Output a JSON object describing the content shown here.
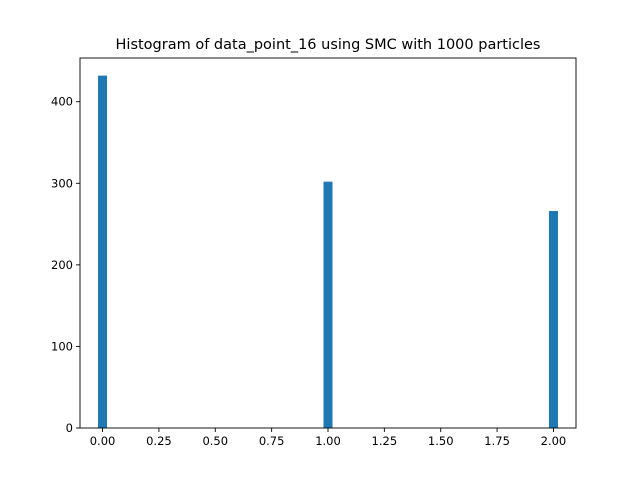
{
  "chart_data": {
    "type": "bar",
    "title": "Histogram of data_point_16 using SMC with 1000 particles",
    "xlabel": "",
    "ylabel": "",
    "x": [
      0.0,
      1.0,
      2.0
    ],
    "values": [
      432,
      302,
      266
    ],
    "bin_width": 0.04,
    "xlim": [
      -0.1,
      2.1
    ],
    "ylim": [
      0,
      453.6
    ],
    "xticks": [
      0.0,
      0.25,
      0.5,
      0.75,
      1.0,
      1.25,
      1.5,
      1.75,
      2.0
    ],
    "xtick_labels": [
      "0.00",
      "0.25",
      "0.50",
      "0.75",
      "1.00",
      "1.25",
      "1.50",
      "1.75",
      "2.00"
    ],
    "yticks": [
      0,
      100,
      200,
      300,
      400
    ],
    "ytick_labels": [
      "0",
      "100",
      "200",
      "300",
      "400"
    ],
    "bar_color": "#1f77b4",
    "grid": false,
    "legend": "none"
  }
}
